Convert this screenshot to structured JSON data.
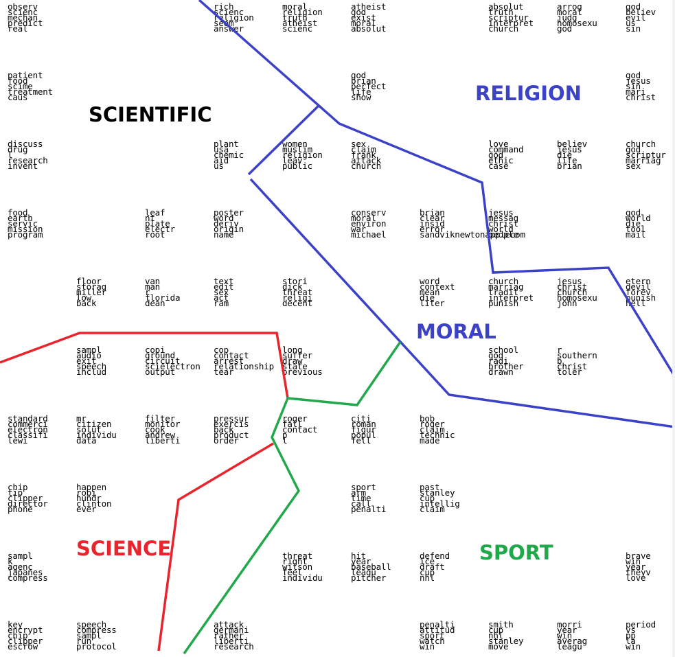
{
  "colors": {
    "religion_moral": "#3b42c8",
    "science": "#e8242c",
    "sport": "#21a84a",
    "scientific_label": "#000000"
  },
  "labels": {
    "scientific": "SCIENTIFIC",
    "religion": "RELIGION",
    "moral": "MORAL",
    "science": "SCIENCE",
    "sport": "SPORT"
  },
  "grid": [
    [
      "observ\nscienc\nmechan\npredict\nreal",
      "",
      "",
      "rich\nscienc\nreligion\nseem\nanswer",
      "moral\nreligion\ntruth\natheist\nscienc",
      "atheist\ngod\nexist\nmoral\nabsolut",
      "",
      "absolut\ntruth\nscriptur\ninterpret\nchurch",
      "arrog\nmoral\njudg\nhomosexu\ngod",
      "god\nbeliev\nevil\nus\nsin"
    ],
    [
      "patient\nfood\nscime\ntreatment\ncaus",
      "",
      "",
      "",
      "",
      "god\nbrian\nperfect\nlife\nshow",
      "",
      "",
      "",
      "god\njesus\nsin\nmari\nchrist"
    ],
    [
      "discuss\ndrug\nl\nresearch\ninvent",
      "",
      "",
      "plant\nusa\nchemic\naid\nus",
      "women\nmuslim\nreligion\nleav\npublic",
      "sex\nclaim\nfrank\nattack\nchurch",
      "",
      "love\ncommand\ngod\nethic\ncase",
      "believ\njesus\ndie\nlife\nbrian",
      "church\ngod\nscriptur\nmarriag\nsex"
    ],
    [
      "food\nearth\nservic\nmission\nprogram",
      "",
      "leaf\nnt\nplate\nelectr\nroot",
      "poster\nword\nderiv\norigin\nname",
      "",
      "conserv\nmoral\nenviron\nwar\nmichael",
      "brian\nclear\ninsid\nerror\nsandviknewtonapplecom",
      "jesus\nmessag\nchrist\nworld\npeople",
      "",
      "god\nworld\ndie\ntool\nmail"
    ],
    [
      "",
      "floor\nstorag\nmiller\nlow\nback",
      "van\nman\nr\nflorida\ndean",
      "text\nedit\nsex\nact\nram",
      "stori\ndick\nthreat\nreligi\ndecent",
      "",
      "word\ncontext\nmean\ndie\nliter",
      "church\nmarriag\ntradit\ninterpret\npunish",
      "jesus\nchrist\nchurch\nhomosexu\njohn",
      "etern\ndevil\nforev\npunish\nhell"
    ],
    [
      "",
      "sampl\naudio\nexit\nspeech\ninclud",
      "copi\nground\ncircuit\nscielectron\noutput",
      "cop\ncontact\narrest\nrelationship\ntear",
      "long\nsuffer\ndraw\nstate\nprevious",
      "",
      "",
      "school\ngod\nradi\nbrother\ndrawn",
      "r\nsouthern\nb\nchrist\ntoler",
      ""
    ],
    [
      "standard\ncommerci\nelectron\nclassifi\nlewi",
      "mr\ncitizen\nsolut\nindividu\ndata",
      "filter\nmonitor\ncook\nandrew\nliberti",
      "pressur\nexercis\nback\nproduct\norder",
      "roger\nfall\ncontact\np\nl",
      "citi\nroman\nfigur\npopul\nfell",
      "bob\nroger\nclaim\ntechnic\nmade",
      "",
      "",
      ""
    ],
    [
      "chip\ntip\nclipper\ndirector\nphone",
      "happen\nrobi\nhundr\nclinton\never",
      "",
      "",
      "",
      "sport\narm\ntime\ncall\npenalti",
      "past\nstanley\ncup\nintellig\nclaim",
      "",
      "",
      ""
    ],
    [
      "sampl\nk\nagenc\njapanes\ncompress",
      "",
      "",
      "",
      "threat\nright\nwilson\nfeel\nindividu",
      "hit\nyear\nbaseball\nleagu\npitcher",
      "defend\nice\ndraft\ncup\nnhl",
      "",
      "",
      "brave\nwin\nyear\ntheyv\nlove"
    ],
    [
      "key\nencrypt\nchip\nclipper\nescrow",
      "speech\ncompress\nsampl\nrun\nprotocol",
      "",
      "attack\ngermani\nrather\nliberti\nresearch",
      "",
      "",
      "penalti\nattitud\nsport\nwatch\nwin",
      "smith\ncup\nnhl\nstanley\nmove",
      "morri\nyear\nwin\naverag\nleagu",
      "period\nvs\npp\nla\nwin"
    ]
  ]
}
